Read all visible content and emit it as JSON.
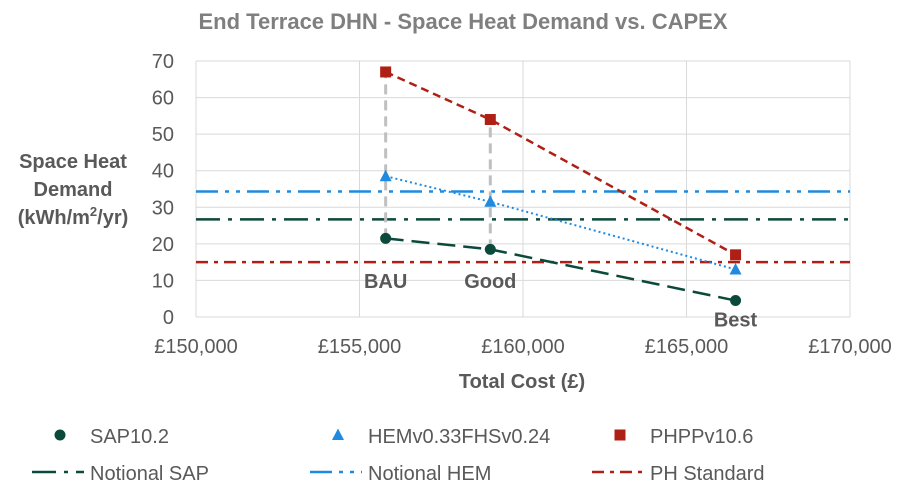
{
  "chart_data": {
    "type": "scatter",
    "title": "End Terrace DHN - Space Heat Demand vs. CAPEX",
    "xlabel": "Total Cost (£)",
    "ylabel_lines": [
      "Space Heat",
      "Demand",
      "(kWh/m",
      "2",
      "/yr)"
    ],
    "xlim": [
      150000,
      170000
    ],
    "ylim": [
      0,
      70
    ],
    "x_ticks": [
      150000,
      155000,
      160000,
      165000,
      170000
    ],
    "x_tick_labels": [
      "£150,000",
      "£155,000",
      "£160,000",
      "£165,000",
      "£170,000"
    ],
    "y_ticks": [
      0,
      10,
      20,
      30,
      40,
      50,
      60,
      70
    ],
    "y_tick_labels": [
      "0",
      "10",
      "20",
      "30",
      "40",
      "50",
      "60",
      "70"
    ],
    "grid": true,
    "legend_position": "bottom",
    "series": [
      {
        "name": "SAP10.2",
        "marker": "circle",
        "color": "#0b4a3b",
        "trendline": "long-dash",
        "points": [
          [
            155800,
            21.5
          ],
          [
            159000,
            18.5
          ],
          [
            166500,
            4.5
          ]
        ]
      },
      {
        "name": "HEMv0.33FHSv0.24",
        "marker": "triangle",
        "color": "#1f8ae0",
        "trendline": "dotted",
        "points": [
          [
            155800,
            38.5
          ],
          [
            159000,
            31.5
          ],
          [
            166500,
            13.0
          ]
        ]
      },
      {
        "name": "PHPPv10.6",
        "marker": "square",
        "color": "#b01f15",
        "trendline": "short-dash",
        "points": [
          [
            155800,
            67.0
          ],
          [
            159000,
            54.0
          ],
          [
            166500,
            17.0
          ]
        ]
      }
    ],
    "reference_lines": [
      {
        "name": "Notional SAP",
        "y": 26.7,
        "color": "#0b4a3b",
        "style": "long-dash-dot"
      },
      {
        "name": "Notional HEM",
        "y": 34.3,
        "color": "#1f8ae0",
        "style": "dash-dot-dot"
      },
      {
        "name": "PH Standard",
        "y": 15.0,
        "color": "#b01f15",
        "style": "dash-dot"
      }
    ],
    "drop_lines": [
      {
        "x": 155800,
        "y_from": 21.5,
        "y_to": 67.0
      },
      {
        "x": 159000,
        "y_from": 18.5,
        "y_to": 54.0
      }
    ],
    "drop_line_color": "#bfbfbf",
    "annotations": [
      {
        "text": "BAU",
        "x": 155800,
        "y": 15
      },
      {
        "text": "Good",
        "x": 159000,
        "y": 15
      },
      {
        "text": "Best",
        "x": 166500,
        "y": 4.5
      }
    ]
  }
}
